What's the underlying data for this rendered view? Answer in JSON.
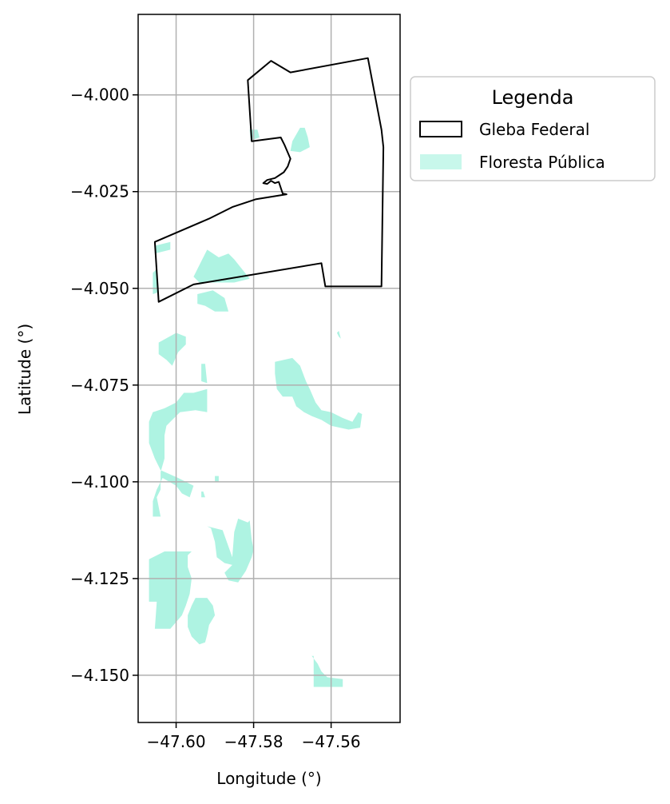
{
  "chart_data": {
    "type": "map",
    "xlabel": "Longitude (°)",
    "ylabel": "Latitude (°)",
    "xlim": [
      -47.6098,
      -47.5422
    ],
    "ylim": [
      -4.1622,
      -3.9792
    ],
    "x_ticks": [
      {
        "value": -47.6,
        "label": "−47.60"
      },
      {
        "value": -47.58,
        "label": "−47.58"
      },
      {
        "value": -47.56,
        "label": "−47.56"
      }
    ],
    "y_ticks": [
      {
        "value": -4.0,
        "label": "−4.000"
      },
      {
        "value": -4.025,
        "label": "−4.025"
      },
      {
        "value": -4.05,
        "label": "−4.050"
      },
      {
        "value": -4.075,
        "label": "−4.075"
      },
      {
        "value": -4.1,
        "label": "−4.100"
      },
      {
        "value": -4.125,
        "label": "−4.125"
      },
      {
        "value": -4.15,
        "label": "−4.150"
      }
    ],
    "grid": true,
    "legend": {
      "title": "Legenda",
      "placement": "outside-right-top",
      "entries": [
        {
          "label": "Gleba Federal",
          "type": "outline",
          "color": "#000000"
        },
        {
          "label": "Floresta Pública",
          "type": "fill",
          "color": "#aaf2e0"
        }
      ]
    },
    "series": [
      {
        "name": "Gleba Federal",
        "type": "polygon",
        "stroke": "#000000",
        "coordinates": [
          [
            -47.5755,
            -3.9912
          ],
          [
            -47.5705,
            -3.9942
          ],
          [
            -47.5505,
            -3.9905
          ],
          [
            -47.547,
            -4.009
          ],
          [
            -47.5465,
            -4.0135
          ],
          [
            -47.547,
            -4.0495
          ],
          [
            -47.5615,
            -4.0495
          ],
          [
            -47.5625,
            -4.0435
          ],
          [
            -47.5955,
            -4.049
          ],
          [
            -47.6045,
            -4.0535
          ],
          [
            -47.6055,
            -4.038
          ],
          [
            -47.5915,
            -4.032
          ],
          [
            -47.5855,
            -4.029
          ],
          [
            -47.5795,
            -4.027
          ],
          [
            -47.5715,
            -4.0257
          ],
          [
            -47.5725,
            -4.0255
          ],
          [
            -47.5735,
            -4.0225
          ],
          [
            -47.5745,
            -4.0228
          ],
          [
            -47.5755,
            -4.0222
          ],
          [
            -47.5765,
            -4.023
          ],
          [
            -47.5775,
            -4.0228
          ],
          [
            -47.5765,
            -4.022
          ],
          [
            -47.5745,
            -4.0215
          ],
          [
            -47.573,
            -4.0205
          ],
          [
            -47.5722,
            -4.02
          ],
          [
            -47.5712,
            -4.0185
          ],
          [
            -47.5705,
            -4.0165
          ],
          [
            -47.572,
            -4.013
          ],
          [
            -47.573,
            -4.011
          ],
          [
            -47.5805,
            -4.012
          ],
          [
            -47.5805,
            -4.012
          ],
          [
            -47.5815,
            -3.9962
          ]
        ]
      },
      {
        "name": "Floresta Pública",
        "type": "polygons",
        "fill": "#aaf2e0",
        "polygons": [
          [
            [
              -47.5705,
              -4.0145
            ],
            [
              -47.57,
              -4.012
            ],
            [
              -47.568,
              -4.0085
            ],
            [
              -47.5668,
              -4.0085
            ],
            [
              -47.566,
              -4.011
            ],
            [
              -47.5655,
              -4.0135
            ],
            [
              -47.568,
              -4.0148
            ]
          ],
          [
            [
              -47.581,
              -4.009
            ],
            [
              -47.579,
              -4.009
            ],
            [
              -47.5785,
              -4.011
            ],
            [
              -47.5808,
              -4.0118
            ]
          ],
          [
            [
              -47.6055,
              -4.041
            ],
            [
              -47.6015,
              -4.04
            ],
            [
              -47.6015,
              -4.038
            ],
            [
              -47.6055,
              -4.039
            ]
          ],
          [
            [
              -47.606,
              -4.046
            ],
            [
              -47.605,
              -4.045
            ],
            [
              -47.6045,
              -4.051
            ],
            [
              -47.606,
              -4.0515
            ]
          ],
          [
            [
              -47.5955,
              -4.047
            ],
            [
              -47.5935,
              -4.043
            ],
            [
              -47.592,
              -4.04
            ],
            [
              -47.589,
              -4.042
            ],
            [
              -47.5865,
              -4.041
            ],
            [
              -47.585,
              -4.0425
            ],
            [
              -47.583,
              -4.045
            ],
            [
              -47.581,
              -4.0475
            ],
            [
              -47.585,
              -4.0485
            ],
            [
              -47.59,
              -4.0485
            ],
            [
              -47.594,
              -4.0485
            ]
          ],
          [
            [
              -47.5945,
              -4.0515
            ],
            [
              -47.5905,
              -4.0505
            ],
            [
              -47.5875,
              -4.0525
            ],
            [
              -47.5865,
              -4.056
            ],
            [
              -47.59,
              -4.056
            ],
            [
              -47.5925,
              -4.0545
            ],
            [
              -47.5945,
              -4.054
            ]
          ],
          [
            [
              -47.6045,
              -4.064
            ],
            [
              -47.6,
              -4.0615
            ],
            [
              -47.5975,
              -4.0625
            ],
            [
              -47.5975,
              -4.0645
            ],
            [
              -47.5995,
              -4.0665
            ],
            [
              -47.601,
              -4.07
            ],
            [
              -47.6025,
              -4.0685
            ],
            [
              -47.6045,
              -4.067
            ]
          ],
          [
            [
              -47.5935,
              -4.0695
            ],
            [
              -47.5925,
              -4.0695
            ],
            [
              -47.592,
              -4.0745
            ],
            [
              -47.5935,
              -4.074
            ]
          ],
          [
            [
              -47.5585,
              -4.0615
            ],
            [
              -47.558,
              -4.0625
            ],
            [
              -47.5575,
              -4.063
            ],
            [
              -47.558,
              -4.061
            ]
          ],
          [
            [
              -47.5745,
              -4.069
            ],
            [
              -47.57,
              -4.068
            ],
            [
              -47.568,
              -4.07
            ],
            [
              -47.5665,
              -4.074
            ],
            [
              -47.5655,
              -4.076
            ],
            [
              -47.564,
              -4.0795
            ],
            [
              -47.5625,
              -4.0815
            ],
            [
              -47.56,
              -4.082
            ],
            [
              -47.557,
              -4.0835
            ],
            [
              -47.5545,
              -4.0845
            ],
            [
              -47.553,
              -4.082
            ],
            [
              -47.552,
              -4.0825
            ],
            [
              -47.5525,
              -4.086
            ],
            [
              -47.5555,
              -4.0865
            ],
            [
              -47.56,
              -4.0855
            ],
            [
              -47.5625,
              -4.084
            ],
            [
              -47.565,
              -4.083
            ],
            [
              -47.567,
              -4.082
            ],
            [
              -47.569,
              -4.0805
            ],
            [
              -47.57,
              -4.078
            ],
            [
              -47.5725,
              -4.078
            ],
            [
              -47.574,
              -4.076
            ],
            [
              -47.5745,
              -4.072
            ]
          ],
          [
            [
              -47.607,
              -4.0845
            ],
            [
              -47.606,
              -4.082
            ],
            [
              -47.603,
              -4.081
            ],
            [
              -47.6,
              -4.0795
            ],
            [
              -47.598,
              -4.077
            ],
            [
              -47.5955,
              -4.077
            ],
            [
              -47.592,
              -4.076
            ],
            [
              -47.592,
              -4.082
            ],
            [
              -47.595,
              -4.0815
            ],
            [
              -47.599,
              -4.082
            ],
            [
              -47.601,
              -4.084
            ],
            [
              -47.6025,
              -4.0855
            ],
            [
              -47.603,
              -4.088
            ],
            [
              -47.603,
              -4.094
            ],
            [
              -47.604,
              -4.0975
            ],
            [
              -47.604,
              -4.102
            ],
            [
              -47.605,
              -4.104
            ],
            [
              -47.604,
              -4.109
            ],
            [
              -47.606,
              -4.109
            ],
            [
              -47.606,
              -4.105
            ],
            [
              -47.605,
              -4.102
            ],
            [
              -47.6045,
              -4.101
            ],
            [
              -47.6035,
              -4.099
            ],
            [
              -47.6,
              -4.101
            ],
            [
              -47.5985,
              -4.103
            ],
            [
              -47.5965,
              -4.104
            ],
            [
              -47.5955,
              -4.101
            ],
            [
              -47.5995,
              -4.099
            ],
            [
              -47.604,
              -4.097
            ],
            [
              -47.6055,
              -4.094
            ],
            [
              -47.607,
              -4.09
            ]
          ],
          [
            [
              -47.59,
              -4.0985
            ],
            [
              -47.589,
              -4.0985
            ],
            [
              -47.589,
              -4.1
            ],
            [
              -47.59,
              -4.1
            ]
          ],
          [
            [
              -47.5935,
              -4.1025
            ],
            [
              -47.593,
              -4.1025
            ],
            [
              -47.5925,
              -4.104
            ],
            [
              -47.5935,
              -4.104
            ]
          ],
          [
            [
              -47.5855,
              -4.1195
            ],
            [
              -47.585,
              -4.113
            ],
            [
              -47.584,
              -4.1095
            ],
            [
              -47.5815,
              -4.1105
            ],
            [
              -47.581,
              -4.11
            ],
            [
              -47.5805,
              -4.115
            ],
            [
              -47.58,
              -4.1175
            ],
            [
              -47.5805,
              -4.1195
            ],
            [
              -47.582,
              -4.123
            ],
            [
              -47.584,
              -4.126
            ],
            [
              -47.5865,
              -4.1255
            ],
            [
              -47.5875,
              -4.1235
            ],
            [
              -47.5855,
              -4.1215
            ],
            [
              -47.5875,
              -4.121
            ],
            [
              -47.5895,
              -4.1195
            ],
            [
              -47.59,
              -4.1155
            ],
            [
              -47.591,
              -4.112
            ],
            [
              -47.592,
              -4.1115
            ],
            [
              -47.588,
              -4.1125
            ]
          ],
          [
            [
              -47.597,
              -4.119
            ],
            [
              -47.596,
              -4.118
            ],
            [
              -47.603,
              -4.118
            ],
            [
              -47.607,
              -4.12
            ],
            [
              -47.607,
              -4.131
            ],
            [
              -47.605,
              -4.131
            ],
            [
              -47.6055,
              -4.138
            ],
            [
              -47.6015,
              -4.138
            ],
            [
              -47.5985,
              -4.1345
            ],
            [
              -47.5975,
              -4.132
            ],
            [
              -47.5965,
              -4.129
            ],
            [
              -47.596,
              -4.125
            ],
            [
              -47.597,
              -4.122
            ]
          ],
          [
            [
              -47.595,
              -4.13
            ],
            [
              -47.592,
              -4.13
            ],
            [
              -47.5905,
              -4.132
            ],
            [
              -47.59,
              -4.1345
            ],
            [
              -47.5915,
              -4.137
            ],
            [
              -47.592,
              -4.1395
            ],
            [
              -47.5925,
              -4.1415
            ],
            [
              -47.594,
              -4.142
            ],
            [
              -47.596,
              -4.14
            ],
            [
              -47.597,
              -4.1375
            ],
            [
              -47.597,
              -4.1345
            ],
            [
              -47.596,
              -4.132
            ]
          ],
          [
            [
              -47.565,
              -4.145
            ],
            [
              -47.5645,
              -4.145
            ],
            [
              -47.5645,
              -4.153
            ],
            [
              -47.557,
              -4.153
            ],
            [
              -47.557,
              -4.151
            ],
            [
              -47.561,
              -4.1505
            ],
            [
              -47.5625,
              -4.149
            ],
            [
              -47.5635,
              -4.147
            ]
          ]
        ]
      }
    ]
  }
}
